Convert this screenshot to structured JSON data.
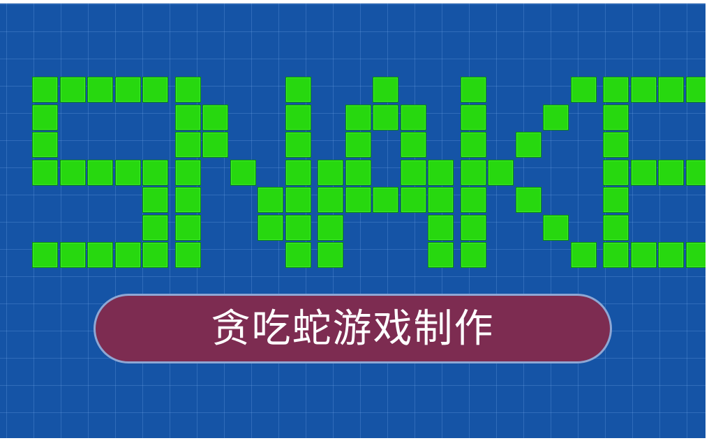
{
  "title": {
    "text": "SNAKE",
    "glyphs": [
      [
        "#####",
        "#....",
        "#....",
        "#####",
        "....#",
        "....#",
        "#####"
      ],
      [
        "#...#",
        "##..#",
        "##..#",
        "#.#.#",
        "#..##",
        "#..##",
        "#...#"
      ],
      [
        "..#..",
        ".###.",
        ".#.#.",
        "##.##",
        "#####",
        "#...#",
        "#...#"
      ],
      [
        "#...#",
        "#..#.",
        "#.#..",
        "##...",
        "#.#..",
        "#..#.",
        "#...#"
      ],
      [
        "#####",
        "#....",
        "#....",
        "#####",
        "#....",
        "#....",
        "#####"
      ]
    ],
    "block_color": "#27d80f"
  },
  "subtitle": {
    "text": "贪吃蛇游戏制作"
  },
  "colors": {
    "background": "#1554a6",
    "banner": "#7d2c51",
    "banner_border": "#8ea7d4",
    "text": "#ffffff"
  }
}
